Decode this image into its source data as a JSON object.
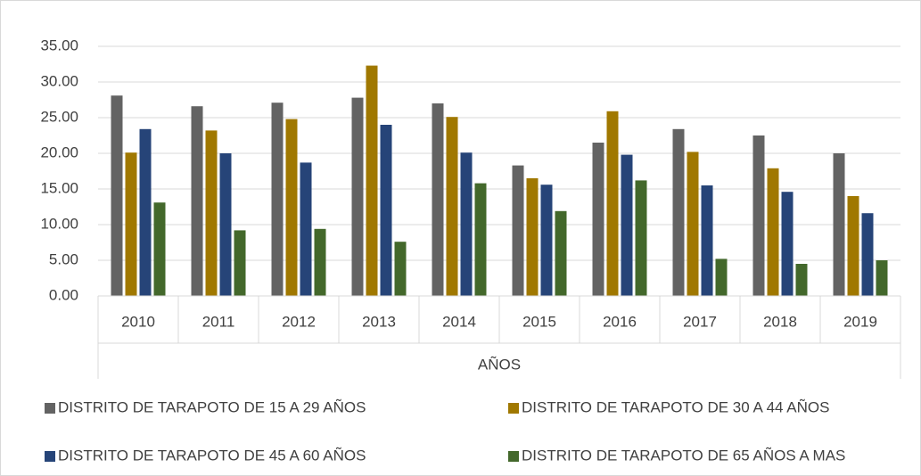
{
  "chart_data": {
    "type": "bar",
    "x_label": "AÑOS",
    "categories": [
      "2010",
      "2011",
      "2012",
      "2013",
      "2014",
      "2015",
      "2016",
      "2017",
      "2018",
      "2019"
    ],
    "series": [
      {
        "name": "DISTRITO DE TARAPOTO DE 15 A 29 AÑOS",
        "color": "#636363",
        "values": [
          28.1,
          26.6,
          27.1,
          27.8,
          27.0,
          18.3,
          21.5,
          23.4,
          22.5,
          20.0
        ]
      },
      {
        "name": "DISTRITO DE TARAPOTO DE 30 A 44 AÑOS",
        "color": "#a07800",
        "values": [
          20.1,
          23.2,
          24.8,
          32.3,
          25.1,
          16.5,
          25.9,
          20.2,
          17.9,
          14.0
        ]
      },
      {
        "name": "DISTRITO DE TARAPOTO DE 45 A 60 AÑOS",
        "color": "#264478",
        "values": [
          23.4,
          20.0,
          18.7,
          24.0,
          20.1,
          15.6,
          19.8,
          15.5,
          14.6,
          11.6
        ]
      },
      {
        "name": "DISTRITO DE TARAPOTO DE 65 AÑOS A MAS",
        "color": "#43682b",
        "values": [
          13.1,
          9.2,
          9.4,
          7.6,
          15.8,
          11.9,
          16.2,
          5.2,
          4.5,
          5.0
        ]
      }
    ],
    "ylim": [
      0,
      35
    ],
    "yticks": [
      {
        "value": 0,
        "label": "0.00"
      },
      {
        "value": 5,
        "label": "5.00"
      },
      {
        "value": 10,
        "label": "10.00"
      },
      {
        "value": 15,
        "label": "15.00"
      },
      {
        "value": 20,
        "label": "20.00"
      },
      {
        "value": 25,
        "label": "25.00"
      },
      {
        "value": 30,
        "label": "30.00"
      },
      {
        "value": 35,
        "label": "35.00"
      }
    ],
    "grid": true
  }
}
